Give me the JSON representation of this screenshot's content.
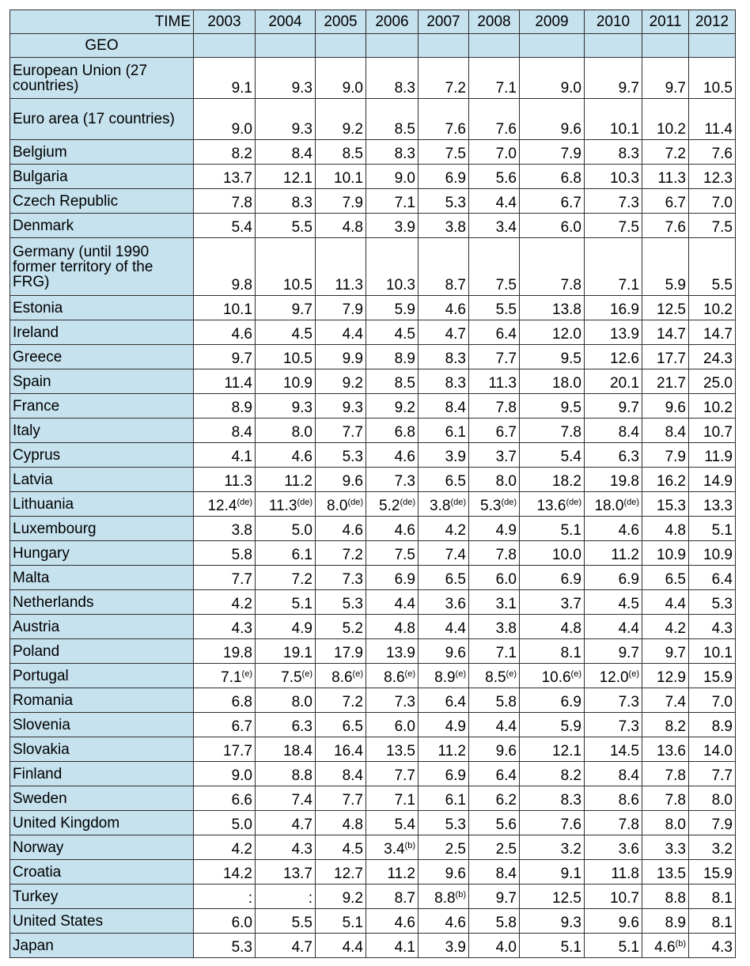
{
  "header": {
    "time_label": "TIME",
    "geo_label": "GEO",
    "years": [
      "2003",
      "2004",
      "2005",
      "2006",
      "2007",
      "2008",
      "2009",
      "2010",
      "2011",
      "2012"
    ]
  },
  "rows": [
    {
      "geo": "European Union (27 countries)",
      "cells": [
        {
          "v": "9.1"
        },
        {
          "v": "9.3"
        },
        {
          "v": "9.0"
        },
        {
          "v": "8.3"
        },
        {
          "v": "7.2"
        },
        {
          "v": "7.1"
        },
        {
          "v": "9.0"
        },
        {
          "v": "9.7"
        },
        {
          "v": "9.7"
        },
        {
          "v": "10.5"
        }
      ]
    },
    {
      "geo": "Euro area (17 countries)",
      "cells": [
        {
          "v": "9.0"
        },
        {
          "v": "9.3"
        },
        {
          "v": "9.2"
        },
        {
          "v": "8.5"
        },
        {
          "v": "7.6"
        },
        {
          "v": "7.6"
        },
        {
          "v": "9.6"
        },
        {
          "v": "10.1"
        },
        {
          "v": "10.2"
        },
        {
          "v": "11.4"
        }
      ]
    },
    {
      "geo": "Belgium",
      "cells": [
        {
          "v": "8.2"
        },
        {
          "v": "8.4"
        },
        {
          "v": "8.5"
        },
        {
          "v": "8.3"
        },
        {
          "v": "7.5"
        },
        {
          "v": "7.0"
        },
        {
          "v": "7.9"
        },
        {
          "v": "8.3"
        },
        {
          "v": "7.2"
        },
        {
          "v": "7.6"
        }
      ]
    },
    {
      "geo": "Bulgaria",
      "cells": [
        {
          "v": "13.7"
        },
        {
          "v": "12.1"
        },
        {
          "v": "10.1"
        },
        {
          "v": "9.0"
        },
        {
          "v": "6.9"
        },
        {
          "v": "5.6"
        },
        {
          "v": "6.8"
        },
        {
          "v": "10.3"
        },
        {
          "v": "11.3"
        },
        {
          "v": "12.3"
        }
      ]
    },
    {
      "geo": "Czech Republic",
      "cells": [
        {
          "v": "7.8"
        },
        {
          "v": "8.3"
        },
        {
          "v": "7.9"
        },
        {
          "v": "7.1"
        },
        {
          "v": "5.3"
        },
        {
          "v": "4.4"
        },
        {
          "v": "6.7"
        },
        {
          "v": "7.3"
        },
        {
          "v": "6.7"
        },
        {
          "v": "7.0"
        }
      ]
    },
    {
      "geo": "Denmark",
      "cells": [
        {
          "v": "5.4"
        },
        {
          "v": "5.5"
        },
        {
          "v": "4.8"
        },
        {
          "v": "3.9"
        },
        {
          "v": "3.8"
        },
        {
          "v": "3.4"
        },
        {
          "v": "6.0"
        },
        {
          "v": "7.5"
        },
        {
          "v": "7.6"
        },
        {
          "v": "7.5"
        }
      ]
    },
    {
      "geo": "Germany (until 1990 former territory of the FRG)",
      "cells": [
        {
          "v": "9.8"
        },
        {
          "v": "10.5"
        },
        {
          "v": "11.3"
        },
        {
          "v": "10.3"
        },
        {
          "v": "8.7"
        },
        {
          "v": "7.5"
        },
        {
          "v": "7.8"
        },
        {
          "v": "7.1"
        },
        {
          "v": "5.9"
        },
        {
          "v": "5.5"
        }
      ]
    },
    {
      "geo": "Estonia",
      "cells": [
        {
          "v": "10.1"
        },
        {
          "v": "9.7"
        },
        {
          "v": "7.9"
        },
        {
          "v": "5.9"
        },
        {
          "v": "4.6"
        },
        {
          "v": "5.5"
        },
        {
          "v": "13.8"
        },
        {
          "v": "16.9"
        },
        {
          "v": "12.5"
        },
        {
          "v": "10.2"
        }
      ]
    },
    {
      "geo": "Ireland",
      "cells": [
        {
          "v": "4.6"
        },
        {
          "v": "4.5"
        },
        {
          "v": "4.4"
        },
        {
          "v": "4.5"
        },
        {
          "v": "4.7"
        },
        {
          "v": "6.4"
        },
        {
          "v": "12.0"
        },
        {
          "v": "13.9"
        },
        {
          "v": "14.7"
        },
        {
          "v": "14.7"
        }
      ]
    },
    {
      "geo": "Greece",
      "cells": [
        {
          "v": "9.7"
        },
        {
          "v": "10.5"
        },
        {
          "v": "9.9"
        },
        {
          "v": "8.9"
        },
        {
          "v": "8.3"
        },
        {
          "v": "7.7"
        },
        {
          "v": "9.5"
        },
        {
          "v": "12.6"
        },
        {
          "v": "17.7"
        },
        {
          "v": "24.3"
        }
      ]
    },
    {
      "geo": "Spain",
      "cells": [
        {
          "v": "11.4"
        },
        {
          "v": "10.9"
        },
        {
          "v": "9.2"
        },
        {
          "v": "8.5"
        },
        {
          "v": "8.3"
        },
        {
          "v": "11.3"
        },
        {
          "v": "18.0"
        },
        {
          "v": "20.1"
        },
        {
          "v": "21.7"
        },
        {
          "v": "25.0"
        }
      ]
    },
    {
      "geo": "France",
      "cells": [
        {
          "v": "8.9"
        },
        {
          "v": "9.3"
        },
        {
          "v": "9.3"
        },
        {
          "v": "9.2"
        },
        {
          "v": "8.4"
        },
        {
          "v": "7.8"
        },
        {
          "v": "9.5"
        },
        {
          "v": "9.7"
        },
        {
          "v": "9.6"
        },
        {
          "v": "10.2"
        }
      ]
    },
    {
      "geo": "Italy",
      "cells": [
        {
          "v": "8.4"
        },
        {
          "v": "8.0"
        },
        {
          "v": "7.7"
        },
        {
          "v": "6.8"
        },
        {
          "v": "6.1"
        },
        {
          "v": "6.7"
        },
        {
          "v": "7.8"
        },
        {
          "v": "8.4"
        },
        {
          "v": "8.4"
        },
        {
          "v": "10.7"
        }
      ]
    },
    {
      "geo": "Cyprus",
      "cells": [
        {
          "v": "4.1"
        },
        {
          "v": "4.6"
        },
        {
          "v": "5.3"
        },
        {
          "v": "4.6"
        },
        {
          "v": "3.9"
        },
        {
          "v": "3.7"
        },
        {
          "v": "5.4"
        },
        {
          "v": "6.3"
        },
        {
          "v": "7.9"
        },
        {
          "v": "11.9"
        }
      ]
    },
    {
      "geo": "Latvia",
      "cells": [
        {
          "v": "11.3"
        },
        {
          "v": "11.2"
        },
        {
          "v": "9.6"
        },
        {
          "v": "7.3"
        },
        {
          "v": "6.5"
        },
        {
          "v": "8.0"
        },
        {
          "v": "18.2"
        },
        {
          "v": "19.8"
        },
        {
          "v": "16.2"
        },
        {
          "v": "14.9"
        }
      ]
    },
    {
      "geo": "Lithuania",
      "cells": [
        {
          "v": "12.4",
          "f": "(de)"
        },
        {
          "v": "11.3",
          "f": "(de)"
        },
        {
          "v": "8.0",
          "f": "(de)"
        },
        {
          "v": "5.2",
          "f": "(de)"
        },
        {
          "v": "3.8",
          "f": "(de)"
        },
        {
          "v": "5.3",
          "f": "(de)"
        },
        {
          "v": "13.6",
          "f": "(de)"
        },
        {
          "v": "18.0",
          "f": "(de)"
        },
        {
          "v": "15.3"
        },
        {
          "v": "13.3"
        }
      ]
    },
    {
      "geo": "Luxembourg",
      "cells": [
        {
          "v": "3.8"
        },
        {
          "v": "5.0"
        },
        {
          "v": "4.6"
        },
        {
          "v": "4.6"
        },
        {
          "v": "4.2"
        },
        {
          "v": "4.9"
        },
        {
          "v": "5.1"
        },
        {
          "v": "4.6"
        },
        {
          "v": "4.8"
        },
        {
          "v": "5.1"
        }
      ]
    },
    {
      "geo": "Hungary",
      "cells": [
        {
          "v": "5.8"
        },
        {
          "v": "6.1"
        },
        {
          "v": "7.2"
        },
        {
          "v": "7.5"
        },
        {
          "v": "7.4"
        },
        {
          "v": "7.8"
        },
        {
          "v": "10.0"
        },
        {
          "v": "11.2"
        },
        {
          "v": "10.9"
        },
        {
          "v": "10.9"
        }
      ]
    },
    {
      "geo": "Malta",
      "cells": [
        {
          "v": "7.7"
        },
        {
          "v": "7.2"
        },
        {
          "v": "7.3"
        },
        {
          "v": "6.9"
        },
        {
          "v": "6.5"
        },
        {
          "v": "6.0"
        },
        {
          "v": "6.9"
        },
        {
          "v": "6.9"
        },
        {
          "v": "6.5"
        },
        {
          "v": "6.4"
        }
      ]
    },
    {
      "geo": "Netherlands",
      "cells": [
        {
          "v": "4.2"
        },
        {
          "v": "5.1"
        },
        {
          "v": "5.3"
        },
        {
          "v": "4.4"
        },
        {
          "v": "3.6"
        },
        {
          "v": "3.1"
        },
        {
          "v": "3.7"
        },
        {
          "v": "4.5"
        },
        {
          "v": "4.4"
        },
        {
          "v": "5.3"
        }
      ]
    },
    {
      "geo": "Austria",
      "cells": [
        {
          "v": "4.3"
        },
        {
          "v": "4.9"
        },
        {
          "v": "5.2"
        },
        {
          "v": "4.8"
        },
        {
          "v": "4.4"
        },
        {
          "v": "3.8"
        },
        {
          "v": "4.8"
        },
        {
          "v": "4.4"
        },
        {
          "v": "4.2"
        },
        {
          "v": "4.3"
        }
      ]
    },
    {
      "geo": "Poland",
      "cells": [
        {
          "v": "19.8"
        },
        {
          "v": "19.1"
        },
        {
          "v": "17.9"
        },
        {
          "v": "13.9"
        },
        {
          "v": "9.6"
        },
        {
          "v": "7.1"
        },
        {
          "v": "8.1"
        },
        {
          "v": "9.7"
        },
        {
          "v": "9.7"
        },
        {
          "v": "10.1"
        }
      ]
    },
    {
      "geo": "Portugal",
      "cells": [
        {
          "v": "7.1",
          "f": "(e)"
        },
        {
          "v": "7.5",
          "f": "(e)"
        },
        {
          "v": "8.6",
          "f": "(e)"
        },
        {
          "v": "8.6",
          "f": "(e)"
        },
        {
          "v": "8.9",
          "f": "(e)"
        },
        {
          "v": "8.5",
          "f": "(e)"
        },
        {
          "v": "10.6",
          "f": "(e)"
        },
        {
          "v": "12.0",
          "f": "(e)"
        },
        {
          "v": "12.9"
        },
        {
          "v": "15.9"
        }
      ]
    },
    {
      "geo": "Romania",
      "cells": [
        {
          "v": "6.8"
        },
        {
          "v": "8.0"
        },
        {
          "v": "7.2"
        },
        {
          "v": "7.3"
        },
        {
          "v": "6.4"
        },
        {
          "v": "5.8"
        },
        {
          "v": "6.9"
        },
        {
          "v": "7.3"
        },
        {
          "v": "7.4"
        },
        {
          "v": "7.0"
        }
      ]
    },
    {
      "geo": "Slovenia",
      "cells": [
        {
          "v": "6.7"
        },
        {
          "v": "6.3"
        },
        {
          "v": "6.5"
        },
        {
          "v": "6.0"
        },
        {
          "v": "4.9"
        },
        {
          "v": "4.4"
        },
        {
          "v": "5.9"
        },
        {
          "v": "7.3"
        },
        {
          "v": "8.2"
        },
        {
          "v": "8.9"
        }
      ]
    },
    {
      "geo": "Slovakia",
      "cells": [
        {
          "v": "17.7"
        },
        {
          "v": "18.4"
        },
        {
          "v": "16.4"
        },
        {
          "v": "13.5"
        },
        {
          "v": "11.2"
        },
        {
          "v": "9.6"
        },
        {
          "v": "12.1"
        },
        {
          "v": "14.5"
        },
        {
          "v": "13.6"
        },
        {
          "v": "14.0"
        }
      ]
    },
    {
      "geo": "Finland",
      "cells": [
        {
          "v": "9.0"
        },
        {
          "v": "8.8"
        },
        {
          "v": "8.4"
        },
        {
          "v": "7.7"
        },
        {
          "v": "6.9"
        },
        {
          "v": "6.4"
        },
        {
          "v": "8.2"
        },
        {
          "v": "8.4"
        },
        {
          "v": "7.8"
        },
        {
          "v": "7.7"
        }
      ]
    },
    {
      "geo": "Sweden",
      "cells": [
        {
          "v": "6.6"
        },
        {
          "v": "7.4"
        },
        {
          "v": "7.7"
        },
        {
          "v": "7.1"
        },
        {
          "v": "6.1"
        },
        {
          "v": "6.2"
        },
        {
          "v": "8.3"
        },
        {
          "v": "8.6"
        },
        {
          "v": "7.8"
        },
        {
          "v": "8.0"
        }
      ]
    },
    {
      "geo": "United Kingdom",
      "cells": [
        {
          "v": "5.0"
        },
        {
          "v": "4.7"
        },
        {
          "v": "4.8"
        },
        {
          "v": "5.4"
        },
        {
          "v": "5.3"
        },
        {
          "v": "5.6"
        },
        {
          "v": "7.6"
        },
        {
          "v": "7.8"
        },
        {
          "v": "8.0"
        },
        {
          "v": "7.9"
        }
      ]
    },
    {
      "geo": "Norway",
      "cells": [
        {
          "v": "4.2"
        },
        {
          "v": "4.3"
        },
        {
          "v": "4.5"
        },
        {
          "v": "3.4",
          "f": "(b)"
        },
        {
          "v": "2.5"
        },
        {
          "v": "2.5"
        },
        {
          "v": "3.2"
        },
        {
          "v": "3.6"
        },
        {
          "v": "3.3"
        },
        {
          "v": "3.2"
        }
      ]
    },
    {
      "geo": "Croatia",
      "cells": [
        {
          "v": "14.2"
        },
        {
          "v": "13.7"
        },
        {
          "v": "12.7"
        },
        {
          "v": "11.2"
        },
        {
          "v": "9.6"
        },
        {
          "v": "8.4"
        },
        {
          "v": "9.1"
        },
        {
          "v": "11.8"
        },
        {
          "v": "13.5"
        },
        {
          "v": "15.9"
        }
      ]
    },
    {
      "geo": "Turkey",
      "cells": [
        {
          "v": ":"
        },
        {
          "v": ":"
        },
        {
          "v": "9.2"
        },
        {
          "v": "8.7"
        },
        {
          "v": "8.8",
          "f": "(b)"
        },
        {
          "v": "9.7"
        },
        {
          "v": "12.5"
        },
        {
          "v": "10.7"
        },
        {
          "v": "8.8"
        },
        {
          "v": "8.1"
        }
      ]
    },
    {
      "geo": "United States",
      "cells": [
        {
          "v": "6.0"
        },
        {
          "v": "5.5"
        },
        {
          "v": "5.1"
        },
        {
          "v": "4.6"
        },
        {
          "v": "4.6"
        },
        {
          "v": "5.8"
        },
        {
          "v": "9.3"
        },
        {
          "v": "9.6"
        },
        {
          "v": "8.9"
        },
        {
          "v": "8.1"
        }
      ]
    },
    {
      "geo": "Japan",
      "cells": [
        {
          "v": "5.3"
        },
        {
          "v": "4.7"
        },
        {
          "v": "4.4"
        },
        {
          "v": "4.1"
        },
        {
          "v": "3.9"
        },
        {
          "v": "4.0"
        },
        {
          "v": "5.1"
        },
        {
          "v": "5.1"
        },
        {
          "v": "4.6",
          "f": "(b)"
        },
        {
          "v": "4.3"
        }
      ]
    }
  ]
}
